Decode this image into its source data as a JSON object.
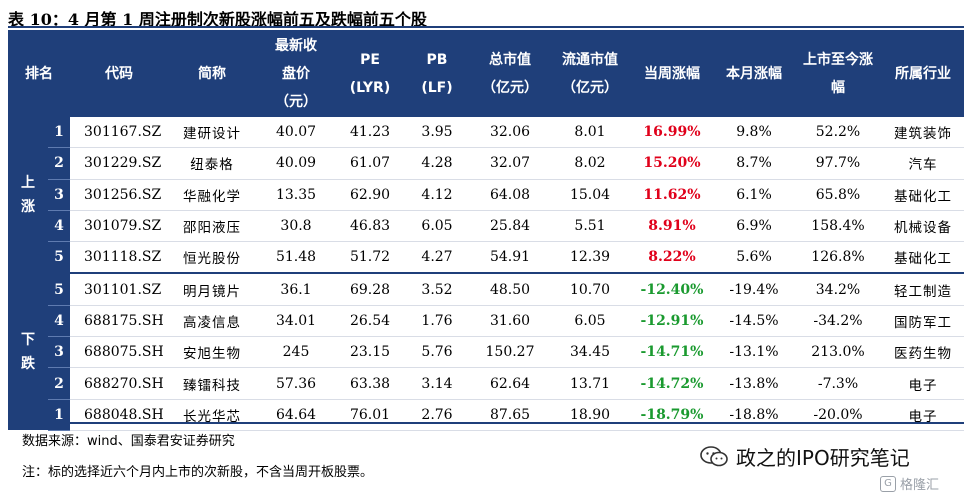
{
  "title": "表 10：4 月第 1 周注册制次新股涨幅前五及跌幅前五个股",
  "headers": {
    "rank": "排名",
    "code": "代码",
    "name": "简称",
    "price": [
      "最新收",
      "盘价",
      "（元）"
    ],
    "pe": [
      "PE",
      "(LYR)"
    ],
    "pb": [
      "PB",
      "(LF)"
    ],
    "mktcap": [
      "总市值",
      "（亿元）"
    ],
    "float": [
      "流通市值",
      "（亿元）"
    ],
    "week": "当周涨幅",
    "month": "本月涨幅",
    "since": [
      "上市至今涨",
      "幅"
    ],
    "industry": "所属行业"
  },
  "groups": {
    "up": [
      "上",
      "涨"
    ],
    "down": [
      "下",
      "跌"
    ]
  },
  "up_rows": [
    {
      "rank": "1",
      "code": "301167.SZ",
      "name": "建研设计",
      "price": "40.07",
      "pe": "41.23",
      "pb": "3.95",
      "mktcap": "32.06",
      "float": "8.01",
      "week": "16.99%",
      "month": "9.8%",
      "since": "52.2%",
      "industry": "建筑装饰"
    },
    {
      "rank": "2",
      "code": "301229.SZ",
      "name": "纽泰格",
      "price": "40.09",
      "pe": "61.07",
      "pb": "4.28",
      "mktcap": "32.07",
      "float": "8.02",
      "week": "15.20%",
      "month": "8.7%",
      "since": "97.7%",
      "industry": "汽车"
    },
    {
      "rank": "3",
      "code": "301256.SZ",
      "name": "华融化学",
      "price": "13.35",
      "pe": "62.90",
      "pb": "4.12",
      "mktcap": "64.08",
      "float": "15.04",
      "week": "11.62%",
      "month": "6.1%",
      "since": "65.8%",
      "industry": "基础化工"
    },
    {
      "rank": "4",
      "code": "301079.SZ",
      "name": "邵阳液压",
      "price": "30.8",
      "pe": "46.83",
      "pb": "6.05",
      "mktcap": "25.84",
      "float": "5.51",
      "week": "8.91%",
      "month": "6.9%",
      "since": "158.4%",
      "industry": "机械设备"
    },
    {
      "rank": "5",
      "code": "301118.SZ",
      "name": "恒光股份",
      "price": "51.48",
      "pe": "51.72",
      "pb": "4.27",
      "mktcap": "54.91",
      "float": "12.39",
      "week": "8.22%",
      "month": "5.6%",
      "since": "126.8%",
      "industry": "基础化工"
    }
  ],
  "down_rows": [
    {
      "rank": "5",
      "code": "301101.SZ",
      "name": "明月镜片",
      "price": "36.1",
      "pe": "69.28",
      "pb": "3.52",
      "mktcap": "48.50",
      "float": "10.70",
      "week": "-12.40%",
      "month": "-19.4%",
      "since": "34.2%",
      "industry": "轻工制造"
    },
    {
      "rank": "4",
      "code": "688175.SH",
      "name": "高凌信息",
      "price": "34.01",
      "pe": "26.54",
      "pb": "1.76",
      "mktcap": "31.60",
      "float": "6.05",
      "week": "-12.91%",
      "month": "-14.5%",
      "since": "-34.2%",
      "industry": "国防军工"
    },
    {
      "rank": "3",
      "code": "688075.SH",
      "name": "安旭生物",
      "price": "245",
      "pe": "23.15",
      "pb": "5.76",
      "mktcap": "150.27",
      "float": "34.45",
      "week": "-14.71%",
      "month": "-13.1%",
      "since": "213.0%",
      "industry": "医药生物"
    },
    {
      "rank": "2",
      "code": "688270.SH",
      "name": "臻镭科技",
      "price": "57.36",
      "pe": "63.38",
      "pb": "3.14",
      "mktcap": "62.64",
      "float": "13.71",
      "week": "-14.72%",
      "month": "-13.8%",
      "since": "-7.3%",
      "industry": "电子"
    },
    {
      "rank": "1",
      "code": "688048.SH",
      "name": "长光华芯",
      "price": "64.64",
      "pe": "76.01",
      "pb": "2.76",
      "mktcap": "87.65",
      "float": "18.90",
      "week": "-18.79%",
      "month": "-18.8%",
      "since": "-20.0%",
      "industry": "电子"
    }
  ],
  "source": "数据来源：wind、国泰君安证券研究",
  "note": "注：标的选择近六个月内上市的次新股，不含当周开板股票。",
  "watermark": "政之的IPO研究笔记",
  "watermark2": "格隆汇",
  "colors": {
    "header_bg": "#1f3f7a",
    "up": "#e0001a",
    "down": "#1a9a2f"
  }
}
